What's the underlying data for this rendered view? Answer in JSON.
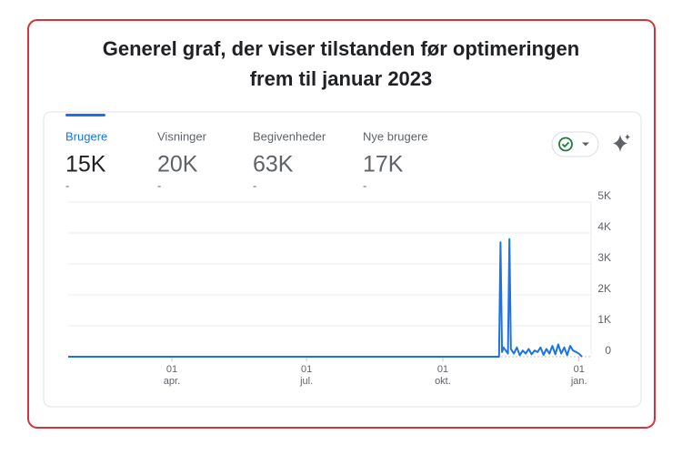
{
  "title": [
    "Generel graf, der viser tilstanden før optimeringen",
    "frem til januar 2023"
  ],
  "metrics": [
    {
      "label": "Brugere",
      "value": "15K",
      "change": "-"
    },
    {
      "label": "Visninger",
      "value": "20K",
      "change": "-"
    },
    {
      "label": "Begivenheder",
      "value": "63K",
      "change": "-"
    },
    {
      "label": "Nye brugere",
      "value": "17K",
      "change": "-"
    }
  ],
  "chart_data": {
    "type": "line",
    "color": "#1a73e8",
    "grid": true,
    "x": [
      20,
      311,
      312,
      313,
      314,
      317,
      318,
      319,
      321,
      323,
      325,
      327,
      329,
      331,
      333,
      335,
      337,
      339,
      341,
      343,
      345,
      347,
      349,
      351,
      353,
      355,
      357,
      359,
      361,
      363,
      365,
      367
    ],
    "values": [
      0,
      0,
      3700,
      150,
      300,
      100,
      3800,
      250,
      100,
      300,
      50,
      200,
      100,
      250,
      80,
      200,
      150,
      300,
      60,
      250,
      100,
      350,
      80,
      400,
      100,
      300,
      50,
      350,
      200,
      150,
      100,
      0
    ],
    "xlim": [
      20,
      367
    ],
    "xticks": [
      {
        "value": 90,
        "label": "01 apr."
      },
      {
        "value": 181,
        "label": "01 jul."
      },
      {
        "value": 273,
        "label": "01 okt."
      },
      {
        "value": 365,
        "label": "01 jan."
      }
    ],
    "ylim": [
      0,
      5000
    ],
    "yticks": [
      0,
      {
        "value": 1000,
        "label": "1K"
      },
      {
        "value": 2000,
        "label": "2K"
      },
      {
        "value": 3000,
        "label": "3K"
      },
      {
        "value": 4000,
        "label": "4K"
      },
      {
        "value": 5000,
        "label": "5K"
      }
    ]
  }
}
